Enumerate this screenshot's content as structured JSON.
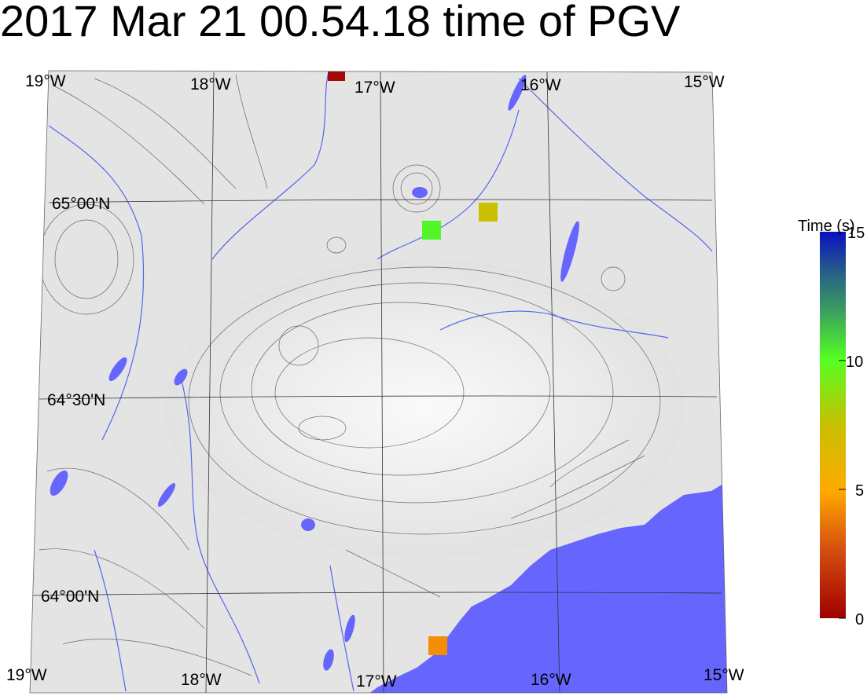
{
  "title": "2017 Mar 21 00.54.18 time of PGV",
  "map": {
    "longitude_labels_top": [
      "19°W",
      "18°W",
      "17°W",
      "16°W",
      "15°W"
    ],
    "longitude_labels_bottom": [
      "19°W",
      "18°W",
      "17°W",
      "16°W",
      "15°W"
    ],
    "latitude_labels": [
      "65°00'N",
      "64°30'N",
      "64°00'N"
    ],
    "land_color": "#e6e6e6",
    "water_color": "#6666ff",
    "contour_color": "#333333",
    "river_color": "#5566ee"
  },
  "stations": [
    {
      "name": "station-north",
      "time_s": 0.3
    },
    {
      "name": "station-green",
      "time_s": 10.2
    },
    {
      "name": "station-yellow",
      "time_s": 7.3
    },
    {
      "name": "station-south",
      "time_s": 4.3
    }
  ],
  "colorbar": {
    "label": "Time (s)",
    "min": 0,
    "max": 15,
    "ticks": [
      "0",
      "5",
      "10",
      "15"
    ],
    "colors": [
      "#a00000",
      "#ffaa00",
      "#55ff22",
      "#0a10c0"
    ]
  }
}
